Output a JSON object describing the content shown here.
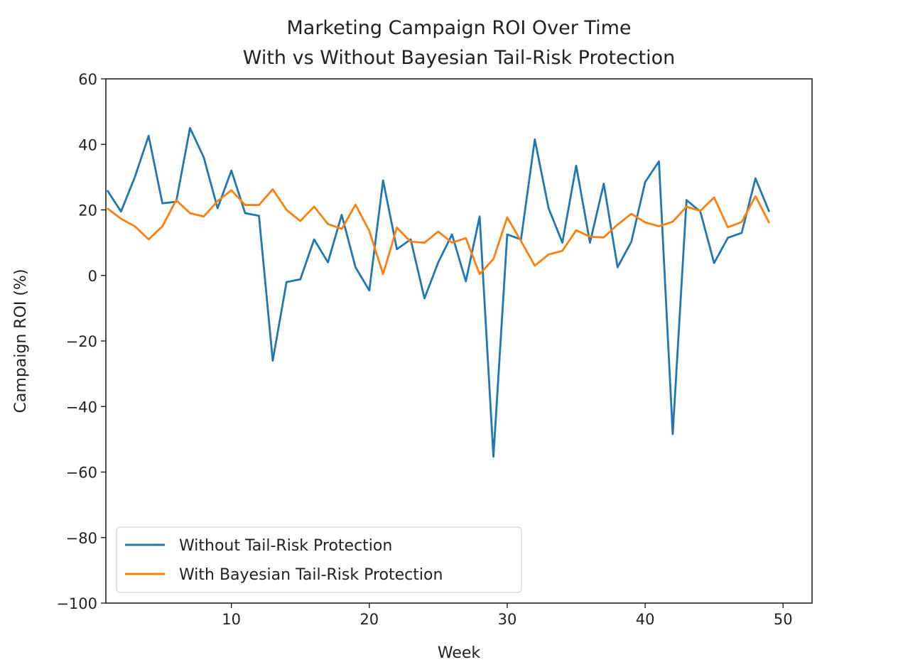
{
  "chart_data": {
    "type": "line",
    "title": "Marketing Campaign ROI Over Time",
    "subtitle": "With vs Without Bayesian Tail-Risk Protection",
    "xlabel": "Week",
    "ylabel": "Campaign ROI (%)",
    "xlim": [
      0.9,
      52.1
    ],
    "ylim": [
      -100,
      60
    ],
    "xticks": [
      10,
      20,
      30,
      40,
      50
    ],
    "yticks": [
      -100,
      -80,
      -60,
      -40,
      -20,
      0,
      20,
      40,
      60
    ],
    "xtick_labels": [
      "10",
      "20",
      "30",
      "40",
      "50"
    ],
    "ytick_labels": [
      "−100",
      "−80",
      "−60",
      "−40",
      "−20",
      "0",
      "20",
      "40",
      "60"
    ],
    "grid": false,
    "legend_position": "lower-left",
    "x": [
      1,
      2,
      3,
      4,
      5,
      6,
      7,
      8,
      9,
      10,
      11,
      12,
      13,
      14,
      15,
      16,
      17,
      18,
      19,
      20,
      21,
      22,
      23,
      24,
      25,
      26,
      27,
      28,
      29,
      30,
      31,
      32,
      33,
      34,
      35,
      36,
      37,
      38,
      39,
      40,
      41,
      42,
      43,
      44,
      45,
      46,
      47,
      48,
      49
    ],
    "series": [
      {
        "name": "Without Tail-Risk Protection",
        "color": "#1f77b4",
        "values": [
          26,
          19.5,
          30,
          42.6,
          22,
          22.5,
          45,
          36,
          20.5,
          32,
          19,
          18.2,
          -26,
          -2,
          -1.2,
          11,
          4,
          18.5,
          2.5,
          -4.6,
          29,
          8,
          11,
          -7,
          4,
          12.5,
          -1.8,
          18,
          -55.3,
          12.5,
          11,
          41.5,
          20.5,
          10,
          33.5,
          10,
          28,
          2.5,
          10.3,
          28.5,
          34.8,
          -48.4,
          23,
          19.5,
          3.8,
          11.5,
          13,
          29.6,
          19.4
        ]
      },
      {
        "name": "With Bayesian Tail-Risk Protection",
        "color": "#ff7f0e",
        "values": [
          20.5,
          17.3,
          15,
          11,
          15,
          23,
          19,
          18,
          22.7,
          26,
          21.5,
          21.5,
          26.3,
          20,
          16.6,
          21,
          15.7,
          14.2,
          21.6,
          13.6,
          0.4,
          14.6,
          10.3,
          10,
          13.4,
          10,
          11.4,
          0.4,
          5,
          17.7,
          10.5,
          3,
          6.4,
          7.5,
          13.8,
          11.8,
          11.6,
          15.5,
          18.8,
          16.2,
          15,
          16.4,
          21,
          19.7,
          23.8,
          14.7,
          16.3,
          24.2,
          16
        ]
      }
    ]
  }
}
